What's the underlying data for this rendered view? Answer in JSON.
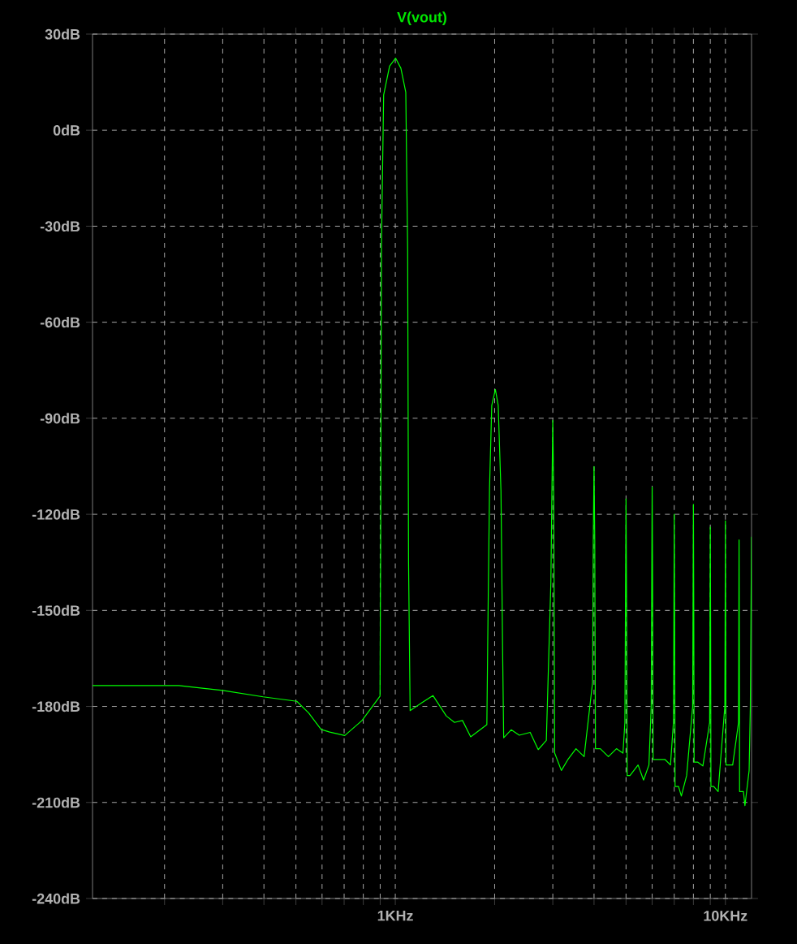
{
  "chart_data": {
    "type": "line",
    "title": "V(vout)",
    "log": "x",
    "grid": true,
    "marker": "none",
    "xlim": [
      0.121,
      12
    ],
    "xticks": [
      {
        "value": 0.2,
        "label": null
      },
      {
        "value": 0.3,
        "label": null
      },
      {
        "value": 0.4,
        "label": null
      },
      {
        "value": 0.5,
        "label": null
      },
      {
        "value": 0.6,
        "label": null
      },
      {
        "value": 0.7,
        "label": null
      },
      {
        "value": 0.8,
        "label": null
      },
      {
        "value": 0.9,
        "label": null
      },
      {
        "value": 1,
        "label": "1KHz"
      },
      {
        "value": 2,
        "label": null
      },
      {
        "value": 3,
        "label": null
      },
      {
        "value": 4,
        "label": null
      },
      {
        "value": 5,
        "label": null
      },
      {
        "value": 6,
        "label": null
      },
      {
        "value": 7,
        "label": null
      },
      {
        "value": 8,
        "label": null
      },
      {
        "value": 9,
        "label": null
      },
      {
        "value": 10,
        "label": "10KHz"
      }
    ],
    "ylim": [
      -240,
      30
    ],
    "yticks": [
      {
        "value": -240,
        "label": "-240dB"
      },
      {
        "value": -210,
        "label": "-210dB"
      },
      {
        "value": -180,
        "label": "-180dB"
      },
      {
        "value": -150,
        "label": "-150dB"
      },
      {
        "value": -120,
        "label": "-120dB"
      },
      {
        "value": -90,
        "label": "-90dB"
      },
      {
        "value": -60,
        "label": "-60dB"
      },
      {
        "value": -30,
        "label": "-30dB"
      },
      {
        "value": 0,
        "label": "0dB"
      },
      {
        "value": 30,
        "label": "30dB"
      }
    ],
    "series": [
      {
        "color": "#00ff00",
        "x": [
          0.121,
          0.221,
          0.3,
          0.398,
          0.503,
          0.546,
          0.596,
          0.633,
          0.703,
          0.793,
          0.899,
          0.903,
          0.908,
          0.922,
          0.961,
          1.002,
          1.04,
          1.076,
          1.09,
          1.097,
          1.109,
          1.206,
          1.3,
          1.428,
          1.511,
          1.598,
          1.692,
          1.894,
          1.905,
          1.93,
          1.96,
          2.01,
          2.05,
          2.09,
          2.115,
          2.13,
          2.244,
          2.375,
          2.562,
          2.71,
          2.868,
          2.96,
          2.98,
          3,
          3.02,
          3.04,
          3.185,
          3.333,
          3.527,
          3.733,
          3.96,
          3.98,
          4,
          4.02,
          4.04,
          4.178,
          4.421,
          4.677,
          4.895,
          4.96,
          4.98,
          5,
          5.02,
          5.04,
          5.14,
          5.438,
          5.65,
          5.866,
          5.96,
          5.98,
          6,
          6.02,
          6.04,
          6.206,
          6.567,
          6.817,
          6.96,
          6.98,
          7,
          7.02,
          7.04,
          7.213,
          7.355,
          7.632,
          7.96,
          7.98,
          8,
          8.02,
          8.04,
          8.235,
          8.546,
          8.96,
          8.98,
          9,
          9.02,
          9.04,
          9.219,
          9.506,
          9.96,
          9.98,
          10,
          10.02,
          10.04,
          10.52,
          10.96,
          10.98,
          11,
          11.02,
          11.04,
          11.34,
          11.46,
          11.8,
          11.9,
          12
        ],
        "values": [
          -173.5,
          -173.5,
          -175,
          -177,
          -178.4,
          -182,
          -187.2,
          -188,
          -189.1,
          -184.4,
          -176.8,
          -129.6,
          -36,
          11,
          20,
          22.5,
          19.3,
          11.8,
          -37.3,
          -135,
          -181.3,
          -178.8,
          -176.6,
          -183,
          -185,
          -184.4,
          -189.5,
          -185.7,
          -161,
          -111.8,
          -86,
          -81,
          -86,
          -112.7,
          -164.2,
          -189.8,
          -187.3,
          -189,
          -188.1,
          -193.5,
          -190.6,
          -141.5,
          -115,
          -90.6,
          -115,
          -194.6,
          -200,
          -196.6,
          -193.2,
          -195.7,
          -172.5,
          -128,
          -105.1,
          -128,
          -193.2,
          -193.2,
          -195.7,
          -193.2,
          -194.6,
          -185,
          -150,
          -115.2,
          -150,
          -201.6,
          -201.6,
          -198.3,
          -203,
          -198.3,
          -180,
          -145,
          -111.5,
          -145,
          -196.6,
          -196.6,
          -196.6,
          -198.3,
          -185,
          -155,
          -120,
          -155,
          -205,
          -205,
          -208,
          -201.6,
          -180,
          -150,
          -116.9,
          -150,
          -197.4,
          -197.4,
          -198.6,
          -185,
          -155,
          -124,
          -155,
          -205,
          -205,
          -206.6,
          -180,
          -155,
          -122,
          -155,
          -198.3,
          -198.3,
          -185,
          -160,
          -128,
          -160,
          -206.6,
          -206.6,
          -211,
          -200,
          -180,
          -127
        ]
      }
    ]
  }
}
